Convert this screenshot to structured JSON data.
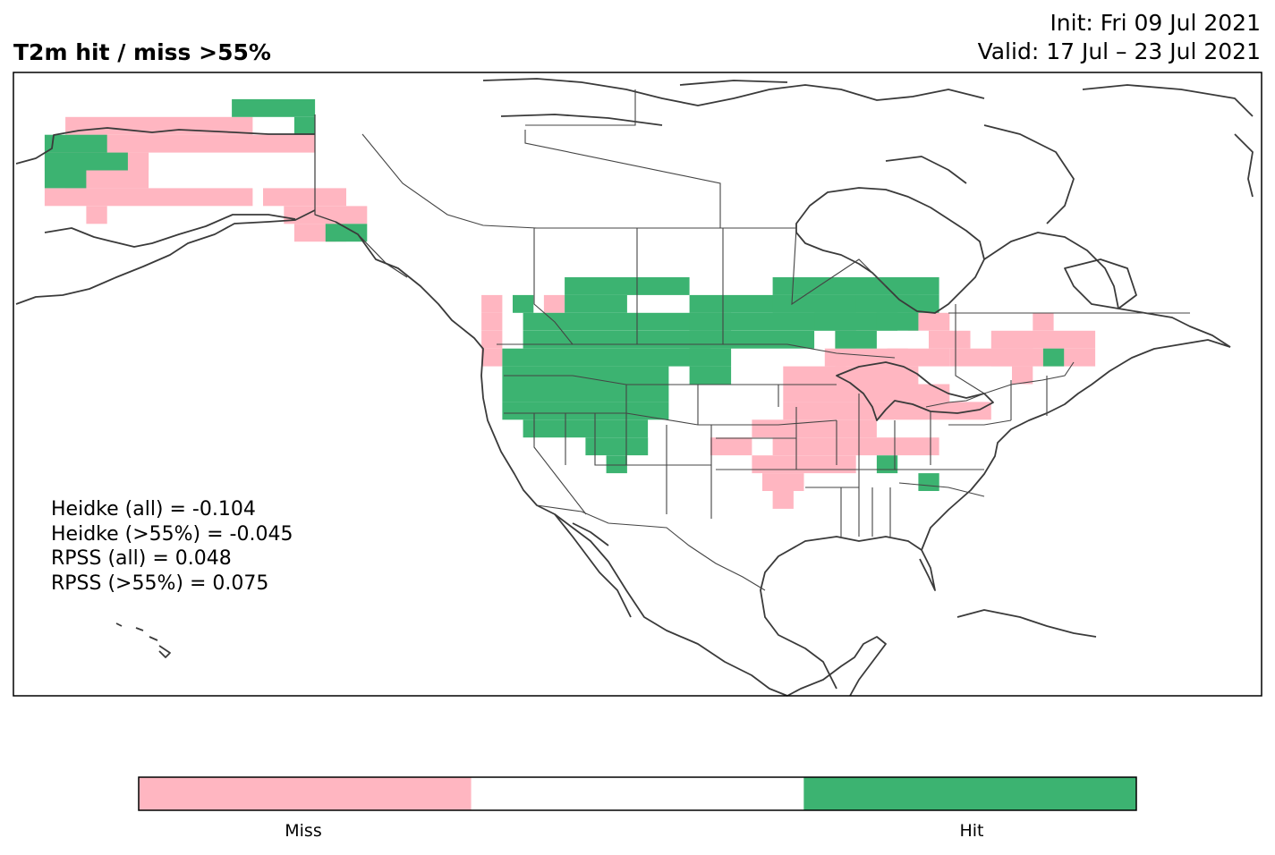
{
  "title": "T2m hit / miss  >55%",
  "init_text": "Init: Fri 09 Jul 2021",
  "valid_text": "Valid: 17 Jul – 23 Jul 2021",
  "stats": [
    "Heidke (all) = -0.104",
    "Heidke (>55%) = -0.045",
    "RPSS (all) = 0.048",
    "RPSS (>55%) = 0.075"
  ],
  "legend": {
    "categories": [
      "Miss",
      "",
      "Hit"
    ],
    "colors": [
      "#ffb6c1",
      "#ffffff",
      "#3cb371"
    ]
  },
  "colors": {
    "miss": "#ffb6c1",
    "hit": "#3cb371",
    "coast": "#3a3a3a"
  },
  "chart_data": {
    "type": "heatmap",
    "projection": "Plate Carree",
    "extent_lon": [
      -170,
      -50
    ],
    "extent_lat": [
      5,
      75
    ],
    "cell_deg": 2,
    "values_legend": {
      "miss": "Miss",
      "hit": "Hit"
    },
    "cells": {
      "miss": [
        [
          -165,
          68,
          9
        ],
        [
          -165,
          66,
          12
        ],
        [
          -167,
          64,
          5
        ],
        [
          -165,
          62,
          4
        ],
        [
          -167,
          60,
          10
        ],
        [
          -163,
          58,
          1
        ],
        [
          -146,
          60,
          4
        ],
        [
          -144,
          58,
          4
        ],
        [
          -143,
          56,
          2
        ],
        [
          -140,
          56,
          1
        ],
        [
          -125,
          48,
          1
        ],
        [
          -125,
          46,
          1
        ],
        [
          -125,
          44,
          1
        ],
        [
          -125,
          42,
          1
        ],
        [
          -119,
          48,
          1
        ],
        [
          -103,
          32,
          2
        ],
        [
          -99,
          34,
          6
        ],
        [
          -97,
          32,
          8
        ],
        [
          -99,
          30,
          5
        ],
        [
          -98,
          28,
          2
        ],
        [
          -97,
          26,
          1
        ],
        [
          -96,
          38,
          8
        ],
        [
          -96,
          36,
          10
        ],
        [
          -96,
          40,
          3
        ],
        [
          -92,
          42,
          4
        ],
        [
          -91,
          40,
          4
        ],
        [
          -91,
          44,
          1
        ],
        [
          -89,
          46,
          1
        ],
        [
          -86,
          42,
          3
        ],
        [
          -84,
          46,
          2
        ],
        [
          -82,
          44,
          2
        ],
        [
          -80,
          42,
          4
        ],
        [
          -76,
          44,
          5
        ],
        [
          -76,
          42,
          5
        ],
        [
          -74,
          40,
          1
        ],
        [
          -72,
          46,
          1
        ]
      ],
      "hit": [
        [
          -149,
          70,
          4
        ],
        [
          -143,
          68,
          1
        ],
        [
          -167,
          66,
          3
        ],
        [
          -167,
          64,
          4
        ],
        [
          -167,
          62,
          2
        ],
        [
          -140,
          56,
          2
        ],
        [
          -122,
          48,
          1
        ],
        [
          -117,
          48,
          3
        ],
        [
          -117,
          50,
          6
        ],
        [
          -121,
          46,
          10
        ],
        [
          -121,
          44,
          10
        ],
        [
          -123,
          42,
          10
        ],
        [
          -123,
          40,
          8
        ],
        [
          -123,
          38,
          8
        ],
        [
          -123,
          36,
          8
        ],
        [
          -121,
          34,
          6
        ],
        [
          -115,
          32,
          3
        ],
        [
          -113,
          30,
          1
        ],
        [
          -105,
          48,
          8
        ],
        [
          -105,
          46,
          8
        ],
        [
          -105,
          44,
          6
        ],
        [
          -105,
          42,
          2
        ],
        [
          -105,
          40,
          2
        ],
        [
          -97,
          50,
          8
        ],
        [
          -97,
          48,
          8
        ],
        [
          -93,
          46,
          4
        ],
        [
          -91,
          44,
          2
        ],
        [
          -89,
          48,
          3
        ],
        [
          -87,
          46,
          2
        ],
        [
          -71,
          42,
          1
        ],
        [
          -87,
          30,
          1
        ],
        [
          -83,
          28,
          1
        ]
      ]
    }
  }
}
